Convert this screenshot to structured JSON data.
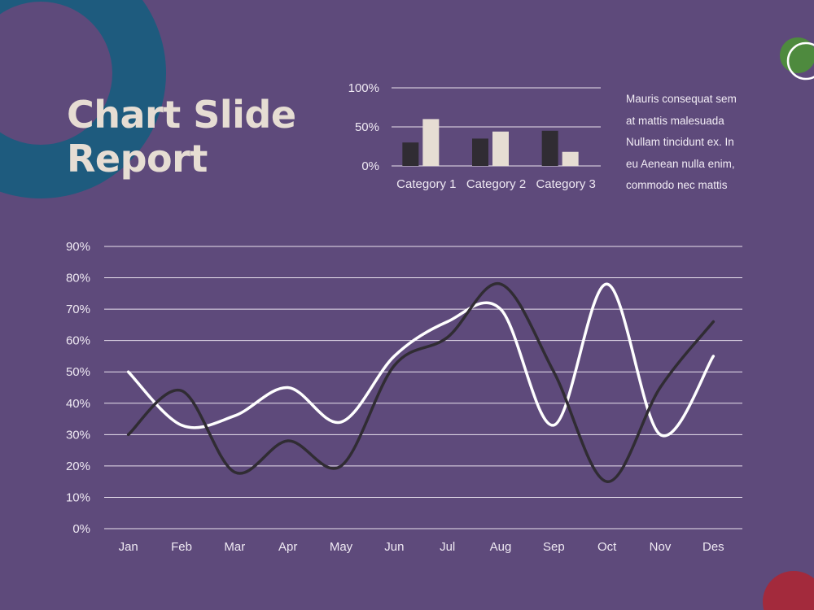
{
  "title": {
    "line1": "Chart Slide",
    "line2": "Report"
  },
  "body_lines": [
    "Mauris consequat sem",
    "at mattis malesuada",
    "Nullam tincidunt ex. In",
    "eu Aenean nulla enim,",
    "commodo nec mattis"
  ],
  "colors": {
    "background": "#5e4a7b",
    "dark_series": "#302c33",
    "light_series": "#e6ddd3",
    "white_series": "#ffffff",
    "ring_blue": "#1e5b7e",
    "dot_green": "#4e8a3e",
    "dot_red": "#a32a3c"
  },
  "chart_data": [
    {
      "type": "bar",
      "categories": [
        "Category 1",
        "Category 2",
        "Category 3"
      ],
      "series": [
        {
          "values": [
            30,
            35,
            45
          ],
          "color": "#302c33"
        },
        {
          "values": [
            60,
            44,
            18
          ],
          "color": "#e6ddd3"
        }
      ],
      "yticks": [
        "0%",
        "50%",
        "100%"
      ],
      "ylim": [
        0,
        100
      ],
      "grid": true
    },
    {
      "type": "line",
      "categories": [
        "Jan",
        "Feb",
        "Mar",
        "Apr",
        "May",
        "Jun",
        "Jul",
        "Aug",
        "Sep",
        "Oct",
        "Nov",
        "Des"
      ],
      "series": [
        {
          "values": [
            50,
            33,
            36,
            45,
            34,
            55,
            66,
            70,
            33,
            78,
            30,
            55
          ],
          "color": "#ffffff"
        },
        {
          "values": [
            30,
            44,
            18,
            28,
            20,
            52,
            61,
            78,
            50,
            15,
            45,
            66
          ],
          "color": "#302c33"
        }
      ],
      "yticks": [
        "0%",
        "10%",
        "20%",
        "30%",
        "40%",
        "50%",
        "60%",
        "70%",
        "80%",
        "90%"
      ],
      "ylim": [
        0,
        90
      ],
      "grid": true
    }
  ]
}
